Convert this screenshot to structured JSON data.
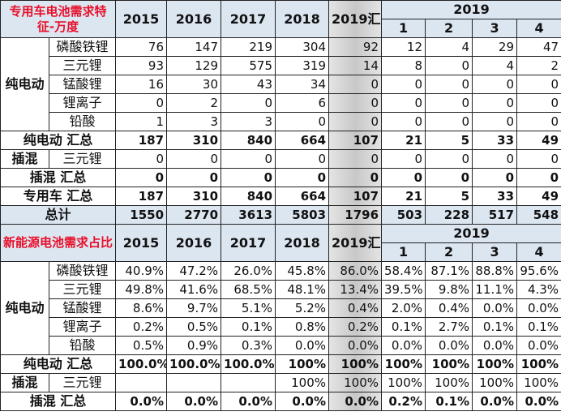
{
  "sections": [
    {
      "title": "专用车电池需求特征-万度",
      "years": [
        "2015",
        "2016",
        "2017",
        "2018"
      ],
      "sum_header": "2019汇总",
      "group_header": "2019",
      "months": [
        "1",
        "2",
        "3",
        "4"
      ],
      "rows": [
        {
          "group": "纯电动",
          "label": "磷酸铁锂",
          "values": [
            "76",
            "147",
            "219",
            "304",
            "92",
            "12",
            "4",
            "29",
            "47"
          ]
        },
        {
          "label": "三元锂",
          "values": [
            "93",
            "129",
            "575",
            "319",
            "14",
            "8",
            "0",
            "4",
            "2"
          ]
        },
        {
          "label": "锰酸锂",
          "values": [
            "16",
            "30",
            "43",
            "34",
            "0",
            "0",
            "0",
            "0",
            "0"
          ]
        },
        {
          "label": "锂离子",
          "values": [
            "0",
            "2",
            "0",
            "6",
            "0",
            "0",
            "0",
            "0",
            "0"
          ]
        },
        {
          "label": "铅酸",
          "values": [
            "1",
            "3",
            "3",
            "0",
            "0",
            "0",
            "0",
            "0",
            "0"
          ]
        },
        {
          "summary": "纯电动 汇总",
          "values": [
            "187",
            "310",
            "840",
            "664",
            "107",
            "21",
            "5",
            "33",
            "49"
          ]
        },
        {
          "group": "插混",
          "label": "三元锂",
          "values": [
            "0",
            "0",
            "0",
            "0",
            "0",
            "0",
            "0",
            "0",
            "0"
          ]
        },
        {
          "summary": "插混 汇总",
          "values": [
            "0",
            "0",
            "0",
            "0",
            "0",
            "0",
            "0",
            "0",
            "0"
          ]
        },
        {
          "summary": "专用车 汇总",
          "values": [
            "187",
            "310",
            "840",
            "664",
            "107",
            "21",
            "5",
            "33",
            "49"
          ]
        },
        {
          "summary": "总计",
          "total": true,
          "values": [
            "1550",
            "2770",
            "3613",
            "5803",
            "1796",
            "503",
            "228",
            "517",
            "548"
          ]
        }
      ]
    },
    {
      "title": "新能源电池需求占比",
      "years": [
        "2015",
        "2016",
        "2017",
        "2018"
      ],
      "sum_header": "2019汇总",
      "group_header": "2019",
      "months": [
        "1",
        "2",
        "3",
        "4"
      ],
      "rows": [
        {
          "group": "纯电动",
          "label": "磷酸铁锂",
          "values": [
            "40.9%",
            "47.2%",
            "26.0%",
            "45.8%",
            "86.0%",
            "58.4%",
            "87.1%",
            "88.8%",
            "95.6%"
          ]
        },
        {
          "label": "三元锂",
          "values": [
            "49.8%",
            "41.6%",
            "68.5%",
            "48.1%",
            "13.4%",
            "39.5%",
            "9.8%",
            "11.1%",
            "4.3%"
          ]
        },
        {
          "label": "锰酸锂",
          "values": [
            "8.6%",
            "9.7%",
            "5.1%",
            "5.2%",
            "0.4%",
            "2.0%",
            "0.4%",
            "0.0%",
            "0.0%"
          ]
        },
        {
          "label": "锂离子",
          "values": [
            "0.2%",
            "0.5%",
            "0.1%",
            "0.8%",
            "0.2%",
            "0.1%",
            "2.7%",
            "0.1%",
            "0.1%"
          ]
        },
        {
          "label": "铅酸",
          "values": [
            "0.5%",
            "0.9%",
            "0.3%",
            "0.0%",
            "0.0%",
            "0.0%",
            "0.0%",
            "0.0%",
            "0.0%"
          ]
        },
        {
          "summary": "纯电动 汇总",
          "values": [
            "100.0%",
            "100.0%",
            "100.0%",
            "100%",
            "100%",
            "100%",
            "100%",
            "100%",
            "100%"
          ]
        },
        {
          "group": "插混",
          "label": "三元锂",
          "values": [
            "",
            "",
            "",
            "100%",
            "100%",
            "100%",
            "100%",
            "100%",
            "100%"
          ]
        },
        {
          "summary": "插混 汇总",
          "values": [
            "0.0%",
            "0.0%",
            "0.0%",
            "0.0%",
            "0.0%",
            "0.2%",
            "0.1%",
            "0.0%",
            "0.0%"
          ]
        }
      ]
    }
  ]
}
